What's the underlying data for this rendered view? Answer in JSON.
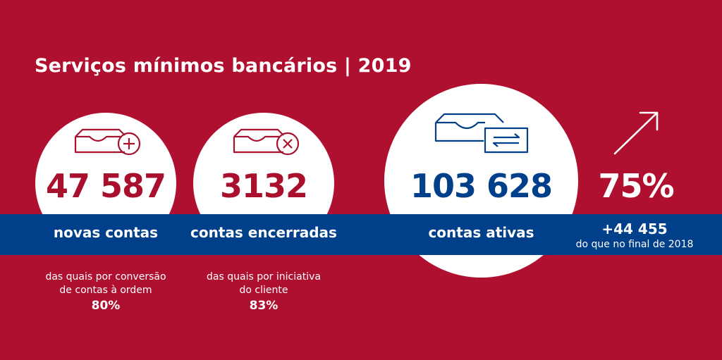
{
  "title": "Serviços mínimos bancários | 2019",
  "colors": {
    "background": "#b01030",
    "band": "#003f8a",
    "accent_red": "#a8102d",
    "accent_blue": "#003f8a"
  },
  "stats": [
    {
      "icon": "account-add-icon",
      "value": "47 587",
      "label": "novas contas",
      "note": "das quais por conversão\nde contas à ordem",
      "note_line1": "das quais por conversão",
      "note_line2": "de contas à ordem",
      "note_value": "80%"
    },
    {
      "icon": "account-close-icon",
      "value": "3132",
      "label": "contas encerradas",
      "note_line1": "das quais por iniciativa",
      "note_line2": "do cliente",
      "note_value": "83%"
    },
    {
      "icon": "account-transfer-icon",
      "value": "103 628",
      "label": "contas ativas"
    },
    {
      "icon": "growth-arrow-icon",
      "value": "75%",
      "label": "+44 455",
      "note_line1": "do que no final de 2018"
    }
  ]
}
